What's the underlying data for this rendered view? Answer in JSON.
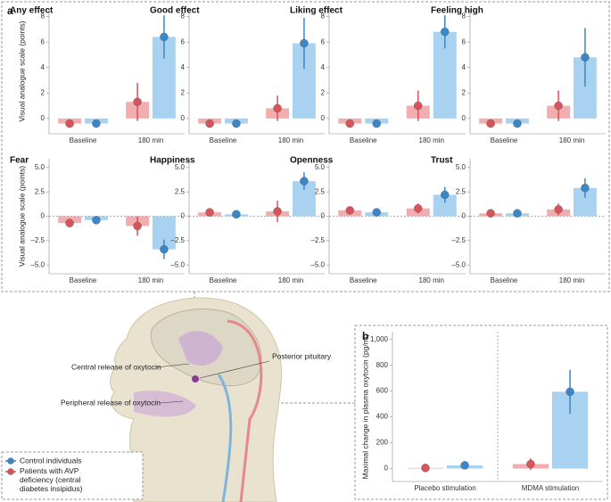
{
  "panel_labels": [
    "a",
    "b"
  ],
  "groups": [
    {
      "name": "Control individuals",
      "color": "#3a87c8",
      "bar_color": "#a9d2f0"
    },
    {
      "name": "Patients with AVP deficiency (central diabetes insipidus)",
      "color": "#d9535a",
      "bar_color": "#f2adb0"
    }
  ],
  "illustration": {
    "labels": [
      "Central release of oxytocin",
      "Peripheral release of oxytocin",
      "Posterior pituitary"
    ]
  },
  "chart_data": [
    {
      "type": "bar",
      "title": "Any effect",
      "ylabel": "Visual analogue scale (points)",
      "categories": [
        "Baseline",
        "180 min"
      ],
      "series": [
        {
          "values": [
            -0.4,
            6.4
          ],
          "errors": [
            0.3,
            1.7
          ]
        },
        {
          "values": [
            -0.4,
            1.3
          ],
          "errors": [
            0.3,
            1.5
          ]
        }
      ],
      "ylim": [
        -1.2,
        8.6
      ],
      "yticks": [
        0,
        2,
        4,
        6,
        8
      ]
    },
    {
      "type": "bar",
      "title": "Good effect",
      "categories": [
        "Baseline",
        "180 min"
      ],
      "series": [
        {
          "values": [
            -0.4,
            5.9
          ],
          "errors": [
            0.3,
            2.0
          ]
        },
        {
          "values": [
            -0.4,
            0.8
          ],
          "errors": [
            0.3,
            1.0
          ]
        }
      ],
      "ylim": [
        -1.2,
        8.6
      ],
      "yticks": [
        0,
        2,
        4,
        6,
        8
      ]
    },
    {
      "type": "bar",
      "title": "Liking effect",
      "categories": [
        "Baseline",
        "180 min"
      ],
      "series": [
        {
          "values": [
            -0.4,
            6.8
          ],
          "errors": [
            0.3,
            1.3
          ]
        },
        {
          "values": [
            -0.4,
            1.0
          ],
          "errors": [
            0.3,
            1.2
          ]
        }
      ],
      "ylim": [
        -1.2,
        8.6
      ],
      "yticks": [
        0,
        2,
        4,
        6,
        8
      ]
    },
    {
      "type": "bar",
      "title": "Feeling high",
      "categories": [
        "Baseline",
        "180 min"
      ],
      "series": [
        {
          "values": [
            -0.4,
            4.8
          ],
          "errors": [
            0.3,
            2.3
          ]
        },
        {
          "values": [
            -0.4,
            1.0
          ],
          "errors": [
            0.3,
            1.2
          ]
        }
      ],
      "ylim": [
        -1.2,
        8.6
      ],
      "yticks": [
        0,
        2,
        4,
        6,
        8
      ]
    },
    {
      "type": "bar",
      "title": "Fear",
      "ylabel": "Visual analogue scale (points)",
      "categories": [
        "Baseline",
        "180 min"
      ],
      "series": [
        {
          "values": [
            -0.4,
            -3.4
          ],
          "errors": [
            0.3,
            1.0
          ]
        },
        {
          "values": [
            -0.7,
            -1.0
          ],
          "errors": [
            0.3,
            1.0
          ]
        }
      ],
      "ylim": [
        -5.9,
        5.9
      ],
      "zero_line": true,
      "yticks": [
        {
          "value": 5,
          "label": "5.0"
        },
        2.5,
        0,
        {
          "value": -2.5,
          "label": "–2.5"
        },
        {
          "value": -5,
          "label": "–5.0"
        }
      ]
    },
    {
      "type": "bar",
      "title": "Happiness",
      "categories": [
        "Baseline",
        "180 min"
      ],
      "series": [
        {
          "values": [
            0.2,
            3.6
          ],
          "errors": [
            0.2,
            0.9
          ]
        },
        {
          "values": [
            0.4,
            0.5
          ],
          "errors": [
            0.3,
            1.1
          ]
        }
      ],
      "ylim": [
        -5.9,
        5.9
      ],
      "zero_line": true,
      "yticks": [
        {
          "value": 5,
          "label": "5.0"
        },
        2.5,
        0,
        {
          "value": -2.5,
          "label": "–2.5"
        },
        {
          "value": -5,
          "label": "–5.0"
        }
      ]
    },
    {
      "type": "bar",
      "title": "Openness",
      "categories": [
        "Baseline",
        "180 min"
      ],
      "series": [
        {
          "values": [
            0.4,
            2.2
          ],
          "errors": [
            0.2,
            0.8
          ]
        },
        {
          "values": [
            0.6,
            0.8
          ],
          "errors": [
            0.3,
            0.5
          ]
        }
      ],
      "ylim": [
        -5.9,
        5.9
      ],
      "zero_line": true,
      "yticks": [
        {
          "value": 5,
          "label": "5.0"
        },
        2.5,
        0,
        {
          "value": -2.5,
          "label": "–2.5"
        },
        {
          "value": -5,
          "label": "–5.0"
        }
      ]
    },
    {
      "type": "bar",
      "title": "Trust",
      "categories": [
        "Baseline",
        "180 min"
      ],
      "series": [
        {
          "values": [
            0.3,
            2.9
          ],
          "errors": [
            0.2,
            1.0
          ]
        },
        {
          "values": [
            0.3,
            0.7
          ],
          "errors": [
            0.2,
            0.6
          ]
        }
      ],
      "ylim": [
        -5.9,
        5.9
      ],
      "zero_line": true,
      "yticks": [
        {
          "value": 5,
          "label": "5.0"
        },
        2.5,
        0,
        {
          "value": -2.5,
          "label": "–2.5"
        },
        {
          "value": -5,
          "label": "–5.0"
        }
      ]
    },
    {
      "type": "bar",
      "ylabel": "Maximal change in plasma oxytocin (pg/ml)",
      "categories": [
        "Placebo stimulation",
        "MDMA stimulation"
      ],
      "series": [
        {
          "values": [
            25,
            595
          ],
          "errors": [
            10,
            170
          ]
        },
        {
          "values": [
            5,
            35
          ],
          "errors": [
            10,
            45
          ]
        }
      ],
      "ylim": [
        -100,
        1060
      ],
      "separator": true,
      "yticks": [
        0,
        200,
        400,
        600,
        800,
        {
          "value": 1000,
          "label": "1,000"
        }
      ]
    }
  ]
}
